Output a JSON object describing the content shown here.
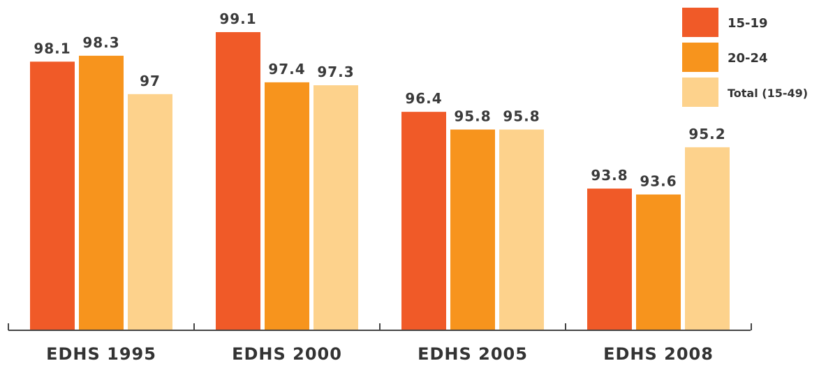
{
  "chart_data": {
    "type": "bar",
    "title": "",
    "xlabel": "",
    "ylabel": "",
    "categories": [
      "EDHS 1995",
      "EDHS 2000",
      "EDHS 2005",
      "EDHS 2008"
    ],
    "ylim": [
      89.0,
      100.0
    ],
    "grid": false,
    "legend_position": "top-right",
    "series": [
      {
        "name": "15-19",
        "color": "#F05A28",
        "values": [
          98.1,
          99.1,
          96.4,
          93.8
        ]
      },
      {
        "name": "20-24",
        "color": "#F7941D",
        "values": [
          98.3,
          97.4,
          95.8,
          93.6
        ]
      },
      {
        "name": "Total (15-49)",
        "color": "#FDD28C",
        "values": [
          97,
          97.3,
          95.8,
          95.2
        ]
      }
    ]
  }
}
